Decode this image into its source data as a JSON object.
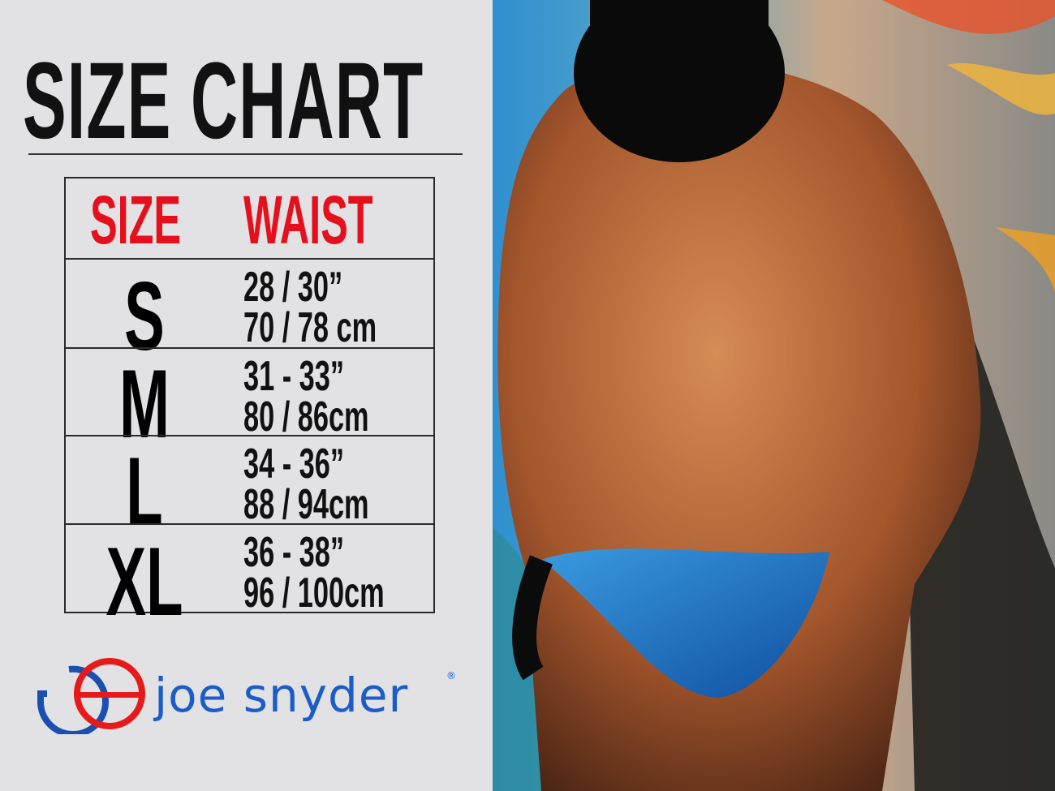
{
  "title": "SIZE CHART",
  "table": {
    "headers": {
      "size": "SIZE",
      "waist": "WAIST"
    },
    "rows": [
      {
        "size": "S",
        "inches": "28 / 30”",
        "cm": "70 / 78 cm"
      },
      {
        "size": "M",
        "inches": "31 - 33”",
        "cm": "80 / 86cm"
      },
      {
        "size": "L",
        "inches": "34 - 36”",
        "cm": "88 / 94cm"
      },
      {
        "size": "XL",
        "inches": "36 - 38”",
        "cm": "96 / 100cm"
      }
    ]
  },
  "brand": {
    "name": "joe snyder",
    "mark": "®"
  },
  "colors": {
    "header_red": "#e5101d",
    "brand_blue": "#1a5cc8",
    "brand_navy": "#0f2a6b",
    "background": "#e2e1e3"
  }
}
